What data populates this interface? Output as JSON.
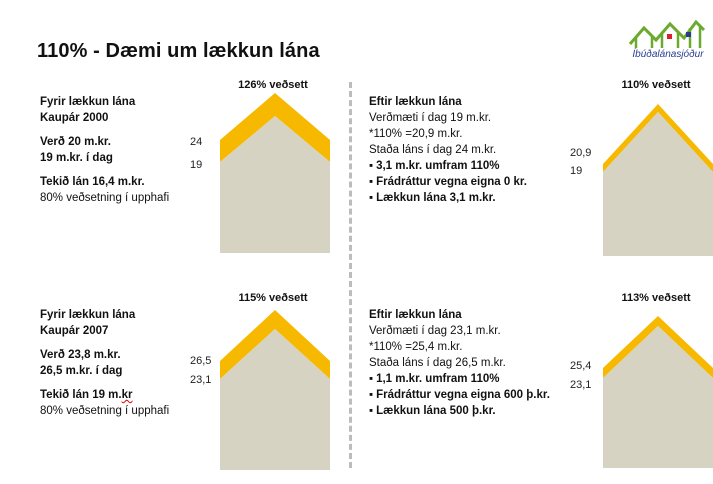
{
  "title": "110% - Dæmi um lækkun lána",
  "logo": {
    "text": "Íbúðalánasjóður",
    "colors": {
      "houses": "#6aaa2c",
      "window_red": "#d8232a",
      "window_blue": "#2a3b8f"
    }
  },
  "colors": {
    "roof": "#f7b800",
    "wall": "#d6d3c2"
  },
  "left_top": {
    "heading1": "Fyrir lækkun lána",
    "heading2": "Kaupár 2000",
    "line1": "Verð 20 m.kr.",
    "line2": "19 m.kr. í dag",
    "line3": "Tekið lán 16,4 m.kr.",
    "line4": "80% veðsetning í upphafi",
    "caption": "126% veðsett",
    "top_value": "24",
    "wall_value": "19"
  },
  "left_bottom": {
    "heading1": "Fyrir lækkun lána",
    "heading2": "Kaupár 2007",
    "line1": "Verð 23,8 m.kr.",
    "line2": "26,5 m.kr. í dag",
    "line3a": "Tekið lán 19 m.",
    "line3b": "kr",
    "line4": "80% veðsetning í upphafi",
    "caption": "115% veðsett",
    "top_value": "26,5",
    "wall_value": "23,1"
  },
  "right_top": {
    "heading": "Eftir lækkun lána",
    "line1": "Verðmæti í dag 19 m.kr.",
    "line2": "*110% =20,9 m.kr.",
    "line3": "Staða láns í dag  24 m.kr.",
    "bullets": [
      "3,1 m.kr. umfram 110%",
      "Frádráttur vegna eigna 0 kr.",
      "Lækkun lána 3,1 m.kr."
    ],
    "caption": "110% veðsett",
    "top_value": "20,9",
    "wall_value": "19"
  },
  "right_bottom": {
    "heading": "Eftir lækkun lána",
    "line1": "Verðmæti í dag 23,1 m.kr.",
    "line2": "*110% =25,4 m.kr.",
    "line3": "Staða láns í dag  26,5 m.kr.",
    "bullets": [
      "1,1 m.kr. umfram 110%",
      "Frádráttur vegna eigna 600 þ.kr.",
      "Lækkun lána 500 þ.kr."
    ],
    "caption": "113% veðsett",
    "top_value": "25,4",
    "wall_value": "23,1"
  }
}
